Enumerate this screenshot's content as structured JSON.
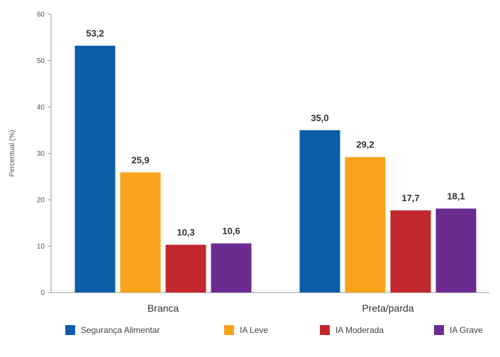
{
  "chart_data": {
    "type": "bar",
    "categories": [
      "Branca",
      "Preta/parda"
    ],
    "series": [
      {
        "name": "Segurança Alimentar",
        "color": "#0a5ea8",
        "values": [
          53.2,
          35.0
        ],
        "labels": [
          "53,2",
          "35,0"
        ]
      },
      {
        "name": "IA Leve",
        "color": "#f9a21b",
        "values": [
          25.9,
          29.2
        ],
        "labels": [
          "25,9",
          "29,2"
        ]
      },
      {
        "name": "IA Moderada",
        "color": "#c1272d",
        "values": [
          10.3,
          17.7
        ],
        "labels": [
          "10,3",
          "17,7"
        ]
      },
      {
        "name": "IA Grave",
        "color": "#6a2c91",
        "values": [
          10.6,
          18.1
        ],
        "labels": [
          "10,6",
          "18,1"
        ]
      }
    ],
    "ylabel": "Percentual (%)",
    "ylim": [
      0,
      60
    ],
    "yticks": [
      "0",
      "10",
      "20",
      "30",
      "40",
      "50",
      "60"
    ],
    "legend_position": "bottom",
    "grid": false
  }
}
